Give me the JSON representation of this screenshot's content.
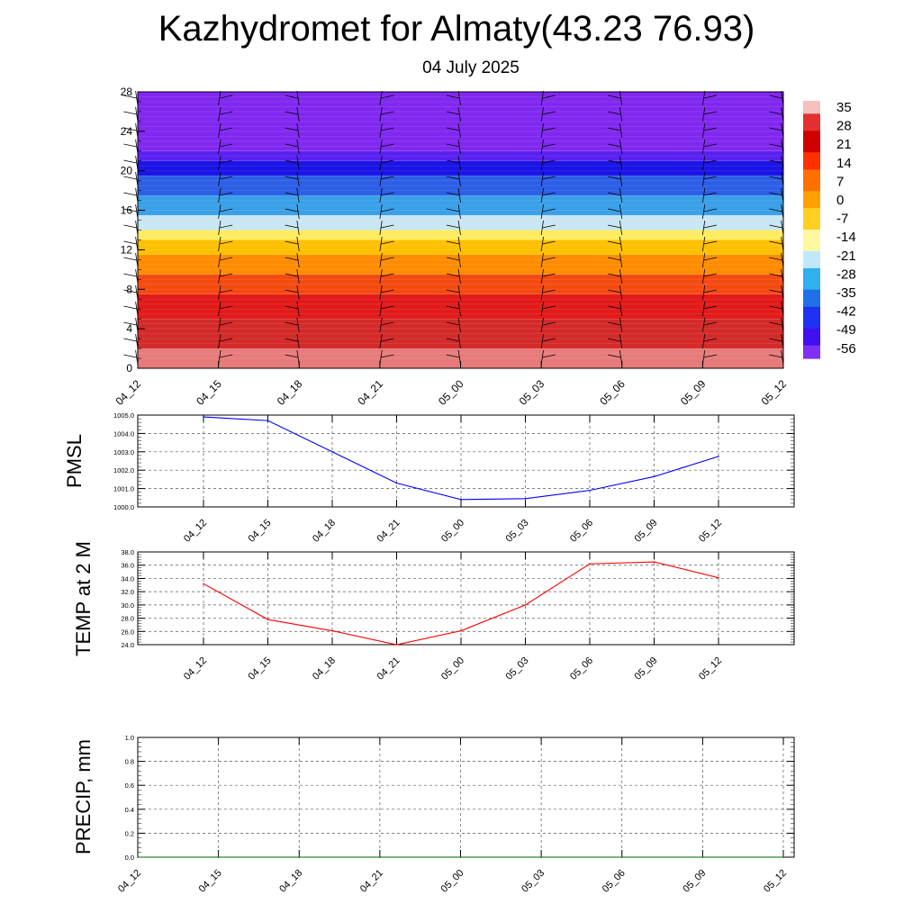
{
  "header": {
    "title": "Kazhydromet for Almaty(43.23 76.93)",
    "subtitle": "04 July 2025"
  },
  "chart_data": [
    {
      "type": "heatmap",
      "title": "",
      "x_ticks": [
        "04_12",
        "04_15",
        "04_18",
        "04_21",
        "05_00",
        "05_03",
        "05_06",
        "05_09",
        "05_12"
      ],
      "y_ticks": [
        "28",
        "24",
        "20",
        "16",
        "12",
        "8",
        "4",
        "0"
      ],
      "ylim": [
        0,
        28
      ],
      "colorbar_labels": [
        "35",
        "28",
        "21",
        "14",
        "7",
        "0",
        "-7",
        "-14",
        "-21",
        "-28",
        "-35",
        "-42",
        "-49",
        "-56"
      ],
      "profile_bands": [
        {
          "from": 0,
          "to": 2,
          "color": "#e77b7b"
        },
        {
          "from": 2,
          "to": 5,
          "color": "#d42a2a"
        },
        {
          "from": 5,
          "to": 7.5,
          "color": "#e21a1a"
        },
        {
          "from": 7.5,
          "to": 9.5,
          "color": "#f44a10"
        },
        {
          "from": 9.5,
          "to": 11.5,
          "color": "#ff8c00"
        },
        {
          "from": 11.5,
          "to": 13,
          "color": "#ffc000"
        },
        {
          "from": 13,
          "to": 14,
          "color": "#ffec60"
        },
        {
          "from": 14,
          "to": 15.5,
          "color": "#c8e6f4"
        },
        {
          "from": 15.5,
          "to": 17.5,
          "color": "#3aa0e8"
        },
        {
          "from": 17.5,
          "to": 19.5,
          "color": "#2c5ee6"
        },
        {
          "from": 19.5,
          "to": 21,
          "color": "#1a14e6"
        },
        {
          "from": 21,
          "to": 22,
          "color": "#5a20f0"
        },
        {
          "from": 22,
          "to": 28,
          "color": "#8028f0"
        }
      ],
      "grid": false,
      "legend": "right"
    },
    {
      "type": "line",
      "ylabel": "PMSL",
      "x_ticks": [
        "04_12",
        "04_15",
        "04_18",
        "04_21",
        "05_00",
        "05_03",
        "05_06",
        "05_09",
        "05_12"
      ],
      "y_ticks": [
        "1005.0",
        "1004.0",
        "1003.0",
        "1002.0",
        "1001.0",
        "1000.0"
      ],
      "ylim": [
        1000,
        1005
      ],
      "series": [
        {
          "values": [
            1004.9,
            1004.7,
            1003.0,
            1001.3,
            1000.4,
            1000.45,
            1000.9,
            1001.65,
            1002.75
          ],
          "color": "#0000ff"
        }
      ],
      "grid": true
    },
    {
      "type": "line",
      "ylabel": "TEMP at 2 M",
      "x_ticks": [
        "04_12",
        "04_15",
        "04_18",
        "04_21",
        "05_00",
        "05_03",
        "05_06",
        "05_09",
        "05_12"
      ],
      "y_ticks": [
        "38.0",
        "36.0",
        "34.0",
        "32.0",
        "30.0",
        "28.0",
        "26.0",
        "24.0"
      ],
      "ylim": [
        24,
        38
      ],
      "series": [
        {
          "values": [
            33.2,
            27.8,
            26.1,
            24.0,
            26.1,
            30.0,
            36.2,
            36.5,
            34.1
          ],
          "color": "#ff0000"
        }
      ],
      "grid": true
    },
    {
      "type": "line",
      "ylabel": "PRECIP, mm",
      "x_ticks": [
        "04_12",
        "04_15",
        "04_18",
        "04_21",
        "05_00",
        "05_03",
        "05_06",
        "05_09",
        "05_12"
      ],
      "y_ticks": [
        "1.0",
        "0.8",
        "0.6",
        "0.4",
        "0.2",
        "0.0"
      ],
      "ylim": [
        0,
        1
      ],
      "series": [
        {
          "values": [
            0,
            0,
            0,
            0,
            0,
            0,
            0,
            0,
            0
          ],
          "color": "#006400"
        }
      ],
      "grid": true
    }
  ]
}
